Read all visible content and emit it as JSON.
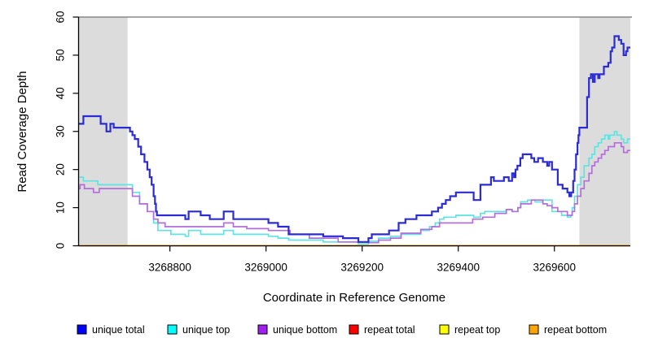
{
  "figure": {
    "background": "#FFFFFF"
  },
  "chart_data": {
    "type": "line",
    "subtype": "step",
    "title": "",
    "xlabel": "Coordinate in Reference Genome",
    "ylabel": "Read Coverage Depth",
    "xlim": [
      3268610,
      3269758
    ],
    "ylim": [
      0,
      60
    ],
    "x_ticks": [
      3268800,
      3269000,
      3269200,
      3269400,
      3269600
    ],
    "y_ticks": [
      0,
      10,
      20,
      30,
      40,
      50,
      60
    ],
    "grid": false,
    "legend_position": "bottom",
    "shaded_regions": [
      {
        "x0": 3268610,
        "x1": 3268712,
        "color": "#DCDCDC"
      },
      {
        "x0": 3269652,
        "x1": 3269758,
        "color": "#DCDCDC"
      }
    ],
    "series": [
      {
        "name": "repeat total",
        "line_color": "#CC0000",
        "legend_color": "#FF0000",
        "points": [
          [
            3268610,
            0
          ]
        ]
      },
      {
        "name": "repeat top",
        "line_color": "#F5F500",
        "legend_color": "#FFFF00",
        "points": [
          [
            3268610,
            0
          ]
        ]
      },
      {
        "name": "repeat bottom",
        "line_color": "#FFA500",
        "legend_color": "#FFA500",
        "points": [
          [
            3268610,
            0
          ]
        ]
      },
      {
        "name": "unique top",
        "line_color": "#5FE3E3",
        "legend_color": "#00FFFF",
        "points": [
          [
            3268610,
            18
          ],
          [
            3268620,
            17
          ],
          [
            3268650,
            16
          ],
          [
            3268722,
            14
          ],
          [
            3268737,
            11
          ],
          [
            3268753,
            9
          ],
          [
            3268766,
            6
          ],
          [
            3268775,
            4
          ],
          [
            3268802,
            3
          ],
          [
            3268832,
            2.5
          ],
          [
            3268839,
            4
          ],
          [
            3268864,
            3
          ],
          [
            3268912,
            4
          ],
          [
            3268932,
            3
          ],
          [
            3269005,
            2.5
          ],
          [
            3269025,
            2
          ],
          [
            3269047,
            1.5
          ],
          [
            3269119,
            1
          ],
          [
            3269192,
            0.5
          ],
          [
            3269213,
            1.2
          ],
          [
            3269234,
            2
          ],
          [
            3269259,
            2.5
          ],
          [
            3269281,
            3
          ],
          [
            3269322,
            4
          ],
          [
            3269340,
            5
          ],
          [
            3269352,
            6
          ],
          [
            3269361,
            7
          ],
          [
            3269370,
            7.5
          ],
          [
            3269395,
            8
          ],
          [
            3269432,
            7.5
          ],
          [
            3269446,
            8.5
          ],
          [
            3269455,
            9
          ],
          [
            3269500,
            9.5
          ],
          [
            3269512,
            9
          ],
          [
            3269524,
            10
          ],
          [
            3269530,
            11.5
          ],
          [
            3269544,
            12
          ],
          [
            3269560,
            11.5
          ],
          [
            3269576,
            12
          ],
          [
            3269595,
            9
          ],
          [
            3269615,
            8
          ],
          [
            3269627,
            7.5
          ],
          [
            3269634,
            8
          ],
          [
            3269637,
            10
          ],
          [
            3269642,
            13
          ],
          [
            3269648,
            16
          ],
          [
            3269655,
            18
          ],
          [
            3269662,
            21
          ],
          [
            3269672,
            23
          ],
          [
            3269678,
            24
          ],
          [
            3269684,
            26
          ],
          [
            3269691,
            27
          ],
          [
            3269698,
            28
          ],
          [
            3269705,
            29
          ],
          [
            3269712,
            28
          ],
          [
            3269715,
            29
          ],
          [
            3269725,
            30
          ],
          [
            3269730,
            29
          ],
          [
            3269739,
            28
          ],
          [
            3269744,
            27
          ],
          [
            3269752,
            28
          ]
        ]
      },
      {
        "name": "unique bottom",
        "line_color": "#B46EDC",
        "legend_color": "#A020F0",
        "points": [
          [
            3268610,
            15
          ],
          [
            3268613,
            16
          ],
          [
            3268622,
            15
          ],
          [
            3268641,
            14
          ],
          [
            3268653,
            15
          ],
          [
            3268722,
            13
          ],
          [
            3268737,
            11
          ],
          [
            3268753,
            9
          ],
          [
            3268766,
            7
          ],
          [
            3268775,
            6
          ],
          [
            3268790,
            5
          ],
          [
            3268912,
            6
          ],
          [
            3268932,
            5
          ],
          [
            3268960,
            4.5
          ],
          [
            3269005,
            4
          ],
          [
            3269050,
            3
          ],
          [
            3269090,
            2
          ],
          [
            3269150,
            1
          ],
          [
            3269213,
            0.8
          ],
          [
            3269234,
            1.5
          ],
          [
            3269259,
            2
          ],
          [
            3269281,
            3.3
          ],
          [
            3269322,
            4.3
          ],
          [
            3269345,
            5
          ],
          [
            3269361,
            6
          ],
          [
            3269430,
            7
          ],
          [
            3269451,
            7.5
          ],
          [
            3269476,
            8.5
          ],
          [
            3269500,
            9.5
          ],
          [
            3269512,
            9
          ],
          [
            3269524,
            10
          ],
          [
            3269530,
            11
          ],
          [
            3269552,
            12
          ],
          [
            3269576,
            11
          ],
          [
            3269585,
            10.5
          ],
          [
            3269595,
            10
          ],
          [
            3269607,
            9
          ],
          [
            3269627,
            8
          ],
          [
            3269637,
            9
          ],
          [
            3269642,
            11
          ],
          [
            3269648,
            13
          ],
          [
            3269655,
            15
          ],
          [
            3269662,
            17
          ],
          [
            3269672,
            19
          ],
          [
            3269678,
            21
          ],
          [
            3269684,
            22
          ],
          [
            3269691,
            23
          ],
          [
            3269698,
            24
          ],
          [
            3269705,
            25
          ],
          [
            3269712,
            26
          ],
          [
            3269725,
            27
          ],
          [
            3269739,
            26
          ],
          [
            3269744,
            24.5
          ],
          [
            3269752,
            25
          ]
        ]
      },
      {
        "name": "unique total",
        "line_color": "#2B2BD5",
        "legend_color": "#0000FF",
        "points": [
          [
            3268610,
            32
          ],
          [
            3268620,
            34
          ],
          [
            3268656,
            32
          ],
          [
            3268668,
            30
          ],
          [
            3268676,
            32
          ],
          [
            3268683,
            31
          ],
          [
            3268717,
            30
          ],
          [
            3268722,
            29
          ],
          [
            3268727,
            28
          ],
          [
            3268734,
            26
          ],
          [
            3268740,
            24
          ],
          [
            3268747,
            22
          ],
          [
            3268753,
            20
          ],
          [
            3268758,
            18
          ],
          [
            3268762,
            16
          ],
          [
            3268766,
            13
          ],
          [
            3268769,
            11
          ],
          [
            3268771,
            9
          ],
          [
            3268773,
            8
          ],
          [
            3268832,
            7
          ],
          [
            3268839,
            9
          ],
          [
            3268864,
            8
          ],
          [
            3268883,
            7
          ],
          [
            3268912,
            9
          ],
          [
            3268932,
            7
          ],
          [
            3269005,
            6
          ],
          [
            3269025,
            5
          ],
          [
            3269047,
            3
          ],
          [
            3269119,
            2.5
          ],
          [
            3269160,
            2
          ],
          [
            3269192,
            1
          ],
          [
            3269213,
            2
          ],
          [
            3269220,
            3
          ],
          [
            3269256,
            4
          ],
          [
            3269276,
            6
          ],
          [
            3269290,
            7
          ],
          [
            3269313,
            8
          ],
          [
            3269345,
            9
          ],
          [
            3269358,
            10
          ],
          [
            3269366,
            11
          ],
          [
            3269374,
            12
          ],
          [
            3269383,
            13
          ],
          [
            3269395,
            14
          ],
          [
            3269432,
            12
          ],
          [
            3269446,
            16
          ],
          [
            3269468,
            18
          ],
          [
            3269474,
            17
          ],
          [
            3269495,
            18
          ],
          [
            3269505,
            17
          ],
          [
            3269512,
            19
          ],
          [
            3269516,
            18
          ],
          [
            3269519,
            20
          ],
          [
            3269523,
            21
          ],
          [
            3269529,
            23
          ],
          [
            3269534,
            24
          ],
          [
            3269552,
            23
          ],
          [
            3269558,
            22
          ],
          [
            3269566,
            23
          ],
          [
            3269576,
            22
          ],
          [
            3269585,
            21
          ],
          [
            3269589,
            22
          ],
          [
            3269595,
            20
          ],
          [
            3269607,
            16
          ],
          [
            3269617,
            15
          ],
          [
            3269627,
            14
          ],
          [
            3269631,
            13
          ],
          [
            3269635,
            14
          ],
          [
            3269639,
            17
          ],
          [
            3269642,
            20
          ],
          [
            3269645,
            24
          ],
          [
            3269648,
            27
          ],
          [
            3269650,
            29
          ],
          [
            3269652,
            31
          ],
          [
            3269668,
            39
          ],
          [
            3269672,
            44
          ],
          [
            3269676,
            45
          ],
          [
            3269680,
            43
          ],
          [
            3269684,
            45
          ],
          [
            3269691,
            44
          ],
          [
            3269694,
            45
          ],
          [
            3269703,
            47
          ],
          [
            3269712,
            48
          ],
          [
            3269717,
            51
          ],
          [
            3269720,
            52
          ],
          [
            3269725,
            55
          ],
          [
            3269734,
            54
          ],
          [
            3269739,
            53
          ],
          [
            3269744,
            50
          ],
          [
            3269749,
            51
          ],
          [
            3269752,
            52
          ]
        ]
      }
    ],
    "legend": [
      {
        "label": "unique total",
        "color": "#0000FF"
      },
      {
        "label": "unique top",
        "color": "#00FFFF"
      },
      {
        "label": "unique bottom",
        "color": "#A020F0"
      },
      {
        "label": "repeat total",
        "color": "#FF0000"
      },
      {
        "label": "repeat top",
        "color": "#FFFF00"
      },
      {
        "label": "repeat bottom",
        "color": "#FFA500"
      }
    ]
  }
}
